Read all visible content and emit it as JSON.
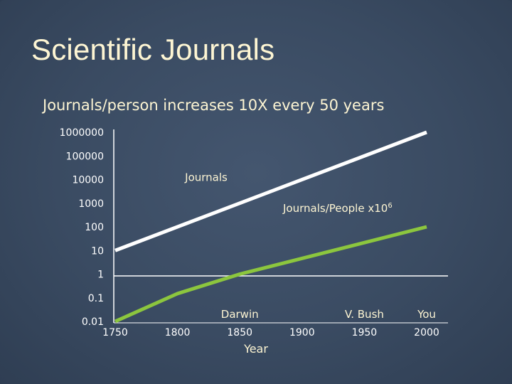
{
  "slide": {
    "title": "Scientific Journals",
    "subtitle": "Journals/person increases 10X every 50 years"
  },
  "chart_data": {
    "type": "line",
    "xlabel": "Year",
    "ylabel": "",
    "xlim": [
      1750,
      2000
    ],
    "ylim": [
      0.01,
      1000000
    ],
    "yscale": "log",
    "x_ticks": [
      "1750",
      "1800",
      "1850",
      "1900",
      "1950",
      "2000"
    ],
    "y_ticks": [
      "1000000",
      "100000",
      "10000",
      "1000",
      "100",
      "10",
      "1",
      "0.1",
      "0.01"
    ],
    "grid": false,
    "series": [
      {
        "name": "Journals",
        "color": "#ffffff",
        "x": [
          1750,
          2000
        ],
        "y": [
          10,
          1000000
        ]
      },
      {
        "name": "Journals/People x10",
        "name_superscript": "6",
        "color": "#8cc63e",
        "x": [
          1750,
          1800,
          1850,
          2000
        ],
        "y": [
          0.01,
          0.15,
          1,
          100
        ]
      }
    ],
    "annotations": [
      {
        "text": "Darwin",
        "x": 1850
      },
      {
        "text": "V. Bush",
        "x": 1950
      },
      {
        "text": "You",
        "x": 2000
      }
    ]
  },
  "colors": {
    "background": "#3a4b62",
    "title": "#fdf5d3",
    "axis": "#ffffff",
    "journals_line": "#ffffff",
    "people_line": "#8cc63e"
  }
}
